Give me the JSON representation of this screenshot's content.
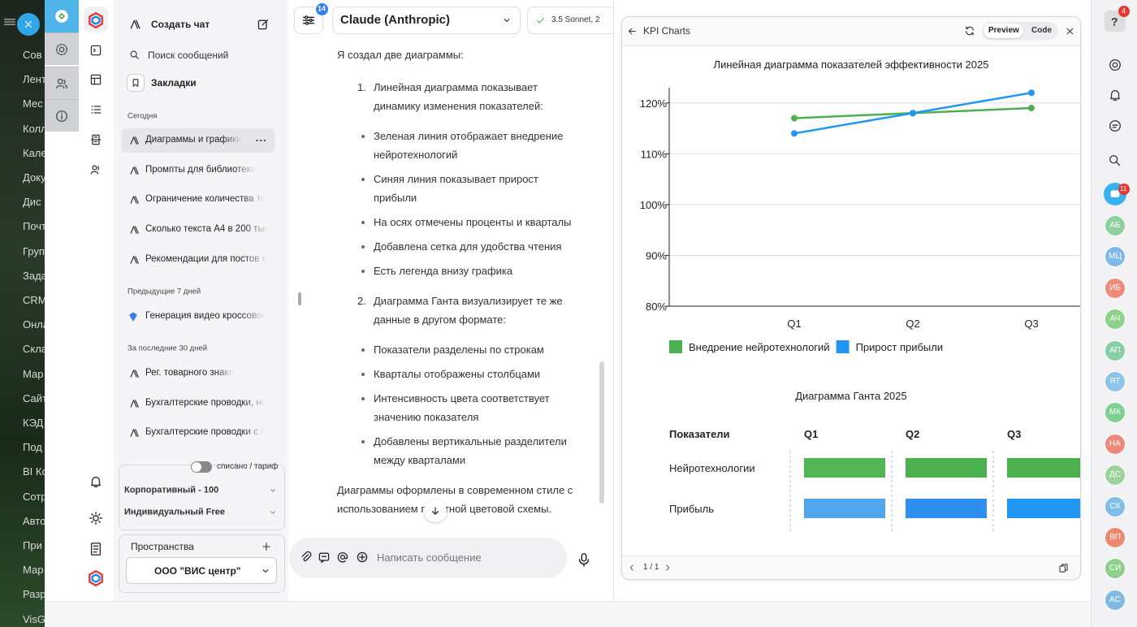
{
  "background_menu": [
    "Сов",
    "Лент",
    "Мес",
    "Колл",
    "Кале",
    "Доку",
    "Дис",
    "Почт",
    "Груп",
    "Зада",
    "CRM",
    "Онла",
    "Скла",
    "Мар",
    "Сайт",
    "КЭД",
    "Под",
    "BI Ко",
    "Сотр",
    "Авто",
    "При",
    "Мар",
    "Разр",
    "VisG"
  ],
  "sidebar": {
    "new_chat": "Создать чат",
    "search": "Поиск сообщений",
    "bookmarks": "Закладки",
    "groups": [
      {
        "title": "Сегодня",
        "items": [
          "Диаграммы и графики",
          "Промпты для библиотеки",
          "Ограничение количества то",
          "Сколько текста А4 в 200 тыс",
          "Рекомендации для постов в"
        ]
      },
      {
        "title": "Предыдущие 7 дней",
        "items": [
          "Генерация видео кроссовок"
        ]
      },
      {
        "title": "За последние 30 дней",
        "items": [
          "Рег. товарного знака",
          "Бухгалтерские проводки, но",
          "Бухгалтерские проводки с п"
        ]
      }
    ],
    "toggle_label": "списано / тариф",
    "plans": [
      "Корпоративный - 100",
      "Индивидуальный Free"
    ],
    "spaces_title": "Пространства",
    "space": "ООО \"ВИС центр\""
  },
  "toolbar": {
    "settings_badge": 14,
    "model": "Claude (Anthropic)",
    "version": "3.5 Sonnet, 2"
  },
  "message": {
    "intro": "Я создал две диаграммы:",
    "list": [
      {
        "marker": "1.",
        "text": "Линейная диаграмма показывает динамику изменения показателей:",
        "bullets": [
          "Зеленая линия отображает внедрение нейротехнологий",
          "Синяя линия показывает прирост прибыли",
          "На осях отмечены проценты и кварталы",
          "Добавлена сетка для удобства чтения",
          "Есть легенда внизу графика"
        ]
      },
      {
        "marker": "2.",
        "text": "Диаграмма Ганта визуализирует те же данные в другом формате:",
        "bullets": [
          "Показатели разделены по строкам",
          "Кварталы отображены столбцами",
          "Интенсивность цвета соответствует значению показателя",
          "Добавлены вертикальные разделители между кварталами"
        ]
      }
    ],
    "outro": "Диаграммы оформлены в современном стиле с использованием приятной цветовой схемы."
  },
  "input_placeholder": "Написать сообщение",
  "preview": {
    "title": "KPI Charts",
    "tabs": [
      "Preview",
      "Code"
    ],
    "pagination": "1 / 1",
    "gantt": {
      "title": "Диаграмма Ганта 2025",
      "header": [
        "Показатели",
        "Q1",
        "Q2",
        "Q3"
      ],
      "rows": [
        {
          "label": "Нейротехнологии",
          "colors": [
            "#52b657",
            "#4caf50",
            "#4caf50"
          ]
        },
        {
          "label": "Прибыль",
          "colors": [
            "#4fa5ee",
            "#2d90f0",
            "#2196f3"
          ]
        }
      ]
    }
  },
  "chart_data": {
    "type": "line",
    "title": "Линейная диаграмма показателей эффективности 2025",
    "categories": [
      "Q1",
      "Q2",
      "Q3"
    ],
    "series": [
      {
        "name": "Внедрение нейротехнологий",
        "color": "#4caf50",
        "values": [
          117,
          118,
          119
        ]
      },
      {
        "name": "Прирост прибыли",
        "color": "#2196f3",
        "values": [
          114,
          118,
          122
        ]
      }
    ],
    "ylim": [
      80,
      123
    ],
    "yticks": [
      {
        "value": 80,
        "label": "80%"
      },
      {
        "value": 90,
        "label": "90%"
      },
      {
        "value": 100,
        "label": "100%"
      },
      {
        "value": 110,
        "label": "110%"
      },
      {
        "value": 120,
        "label": "120%"
      }
    ],
    "grid": true,
    "legend": "bottom"
  },
  "right_bar": {
    "help": "?",
    "help_badge": 4,
    "chat_badge": 11,
    "avatars": [
      {
        "initials": "АБ",
        "color": "#8fd19e"
      },
      {
        "initials": "МЦ",
        "color": "#7fb8e6"
      },
      {
        "initials": "ИБ",
        "color": "#f08a7a"
      },
      {
        "initials": "АЧ",
        "color": "#8bd18b"
      },
      {
        "initials": "АП",
        "color": "#86cfa4"
      },
      {
        "initials": "ЯТ",
        "color": "#8ec4ea"
      },
      {
        "initials": "МК",
        "color": "#7fcf8f"
      },
      {
        "initials": "НА",
        "color": "#ee8a7a"
      },
      {
        "initials": "ДС",
        "color": "#9bd39b"
      },
      {
        "initials": "СК",
        "color": "#80bde8"
      },
      {
        "initials": "ВП",
        "color": "#ec8870"
      },
      {
        "initials": "СИ",
        "color": "#8fd08f"
      },
      {
        "initials": "АС",
        "color": "#7fb9e6"
      }
    ]
  }
}
